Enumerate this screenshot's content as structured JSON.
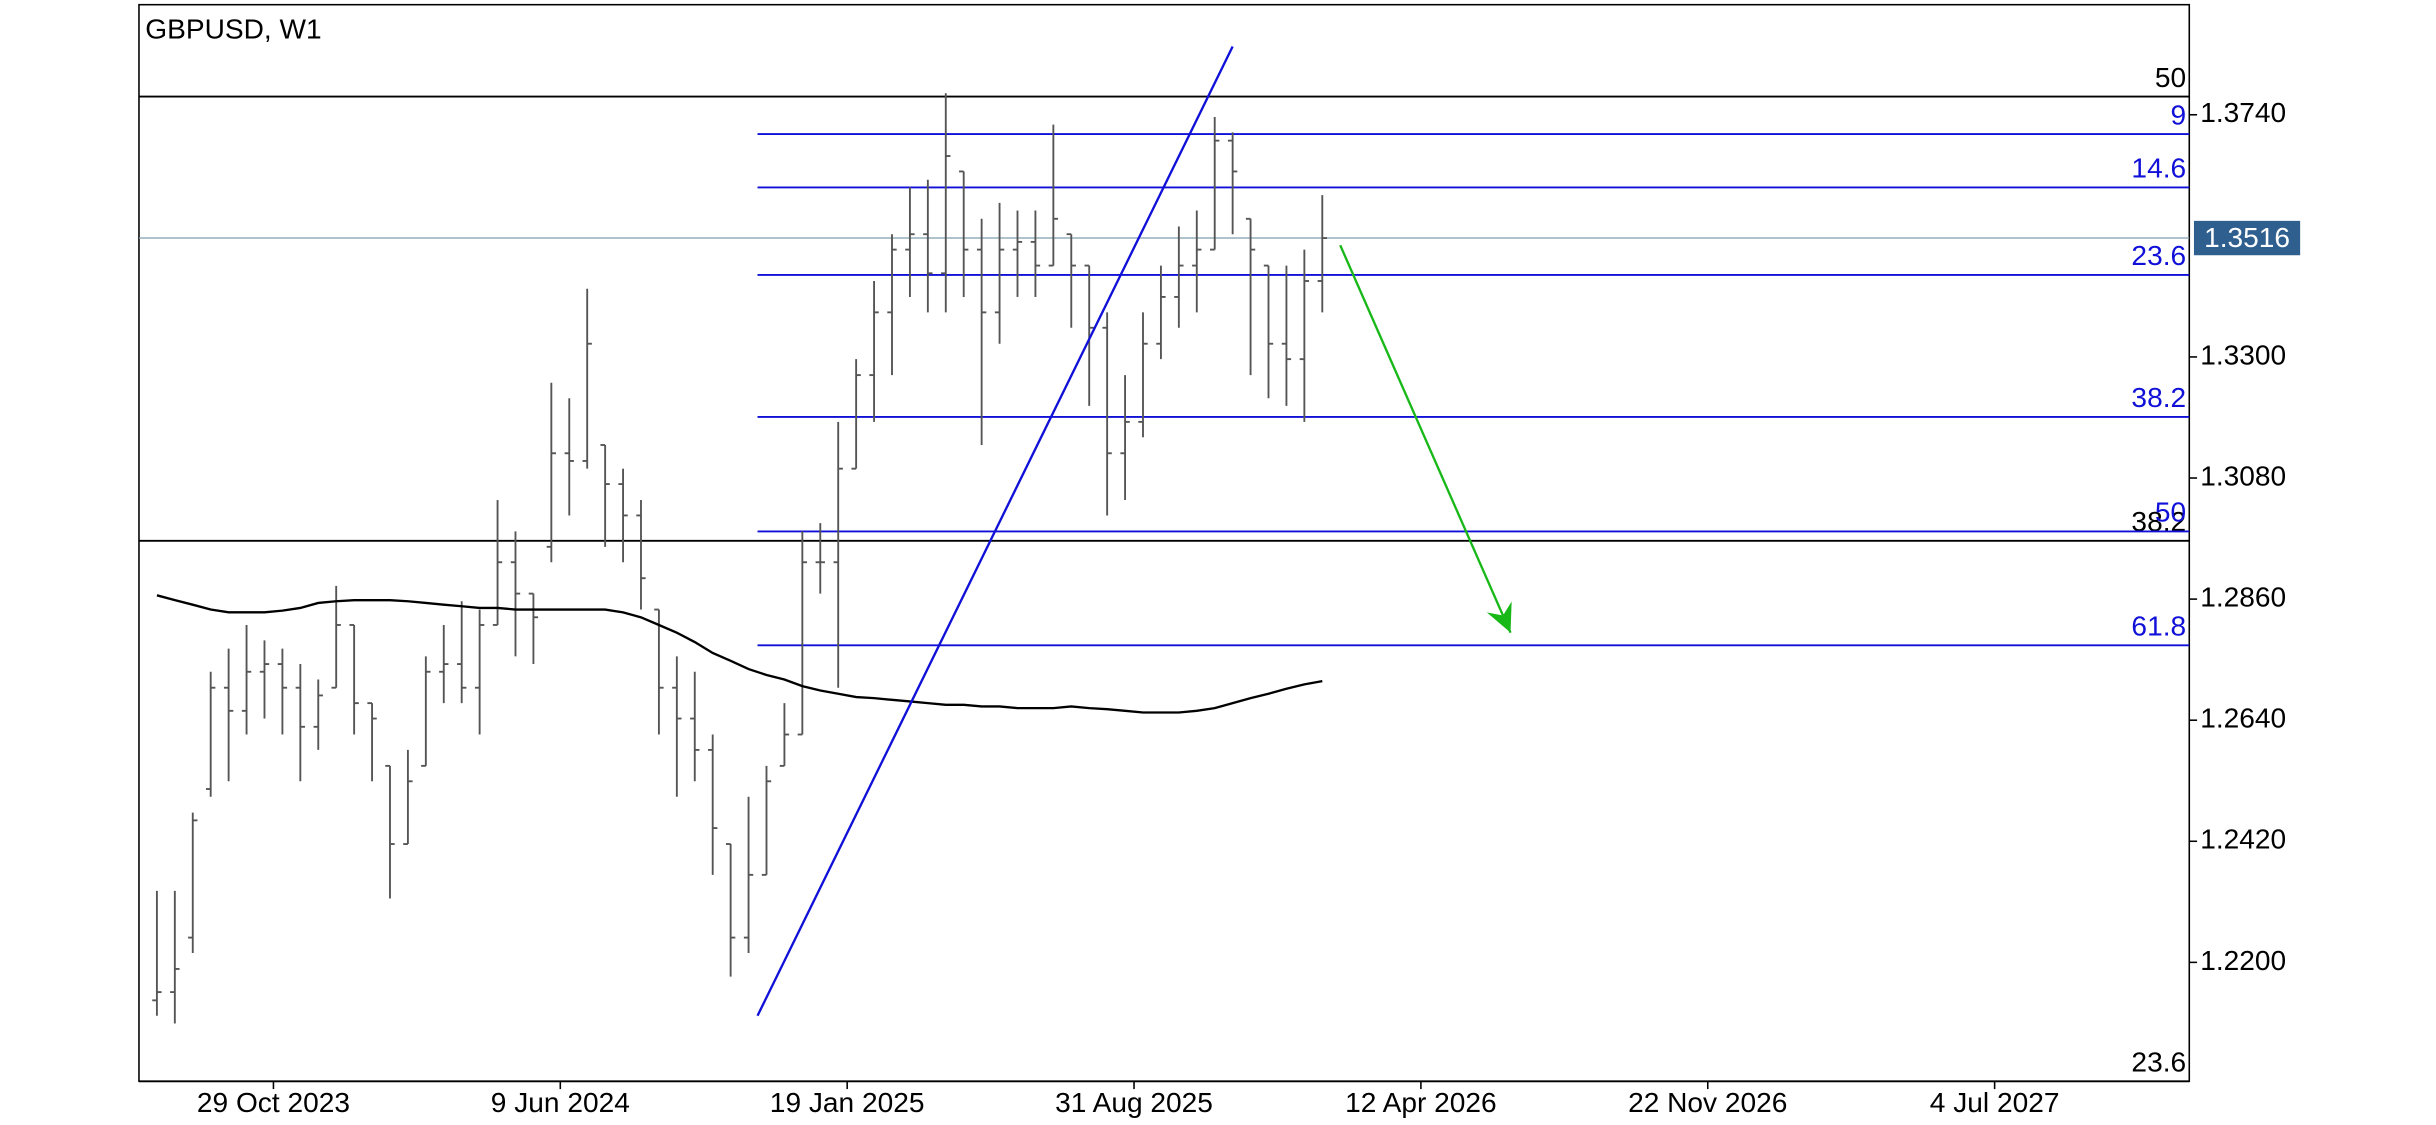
{
  "chart_data": {
    "type": "ohlc",
    "title": "GBPUSD, W1",
    "color": "#555555",
    "x": [
      "2023-07-30",
      "2023-08-13",
      "2023-08-27",
      "2023-09-10",
      "2023-09-24",
      "2023-10-08",
      "2023-10-22",
      "2023-11-05",
      "2023-11-19",
      "2023-12-03",
      "2023-12-17",
      "2023-12-31",
      "2024-01-14",
      "2024-01-28",
      "2024-02-11",
      "2024-02-25",
      "2024-03-10",
      "2024-03-24",
      "2024-04-07",
      "2024-04-21",
      "2024-05-05",
      "2024-05-19",
      "2024-06-02",
      "2024-06-16",
      "2024-06-30",
      "2024-07-14",
      "2024-07-28",
      "2024-08-11",
      "2024-08-25",
      "2024-09-08",
      "2024-09-22",
      "2024-10-06",
      "2024-10-20",
      "2024-11-03",
      "2024-11-17",
      "2024-12-01",
      "2024-12-15",
      "2024-12-29",
      "2025-01-12",
      "2025-01-26",
      "2025-02-09",
      "2025-02-23",
      "2025-03-09",
      "2025-03-23",
      "2025-04-06",
      "2025-04-20",
      "2025-05-04",
      "2025-05-18",
      "2025-06-01",
      "2025-06-15",
      "2025-06-29",
      "2025-07-13",
      "2025-07-27",
      "2025-08-10",
      "2025-08-24",
      "2025-09-07",
      "2025-09-21",
      "2025-10-05",
      "2025-10-19",
      "2025-11-02",
      "2025-11-16",
      "2025-11-30",
      "2025-12-14",
      "2025-12-28",
      "2026-01-11",
      "2026-01-25"
    ],
    "open": [
      1.2131,
      1.2146,
      1.2245,
      1.2515,
      1.2699,
      1.2657,
      1.2728,
      1.2742,
      1.2699,
      1.2628,
      1.2699,
      1.2813,
      1.2671,
      1.2557,
      1.2415,
      1.2557,
      1.2728,
      1.2742,
      1.2699,
      1.2813,
      1.2927,
      1.287,
      1.2955,
      1.3125,
      1.3111,
      1.314,
      1.3069,
      1.3012,
      1.2841,
      1.2699,
      1.2643,
      1.2586,
      1.2415,
      1.2245,
      1.2359,
      1.2557,
      1.2614,
      1.2927,
      1.2927,
      1.3097,
      1.3267,
      1.3381,
      1.3495,
      1.3523,
      1.3452,
      1.3637,
      1.3495,
      1.3381,
      1.3495,
      1.3509,
      1.3466,
      1.3523,
      1.3466,
      1.3353,
      1.3125,
      1.3182,
      1.3324,
      1.3409,
      1.3466,
      1.3495,
      1.3693,
      1.3551,
      1.3466,
      1.3324,
      1.3296,
      1.3438
    ],
    "high": [
      1.233,
      1.233,
      1.2472,
      1.2728,
      1.277,
      1.2813,
      1.2785,
      1.277,
      1.2742,
      1.2714,
      1.2884,
      1.2813,
      1.2671,
      1.2557,
      1.2586,
      1.2756,
      1.2813,
      1.2856,
      1.2841,
      1.304,
      1.2983,
      1.287,
      1.3253,
      1.3225,
      1.3424,
      1.314,
      1.3097,
      1.304,
      1.2841,
      1.2756,
      1.2728,
      1.2614,
      1.2415,
      1.2501,
      1.2557,
      1.2671,
      1.2983,
      1.2998,
      1.3182,
      1.3296,
      1.3438,
      1.3523,
      1.3608,
      1.3622,
      1.3779,
      1.3637,
      1.3551,
      1.358,
      1.3566,
      1.3566,
      1.3722,
      1.3523,
      1.3466,
      1.3381,
      1.3267,
      1.3381,
      1.3466,
      1.3537,
      1.3566,
      1.3736,
      1.3708,
      1.3551,
      1.3466,
      1.3466,
      1.3495,
      1.3594
    ],
    "low": [
      1.2103,
      1.2089,
      1.2217,
      1.2501,
      1.2529,
      1.2614,
      1.2643,
      1.2614,
      1.2529,
      1.2586,
      1.2699,
      1.2614,
      1.2529,
      1.2316,
      1.2415,
      1.2557,
      1.2671,
      1.2671,
      1.2614,
      1.2813,
      1.2756,
      1.2742,
      1.2927,
      1.3012,
      1.3097,
      1.2955,
      1.2927,
      1.2841,
      1.2614,
      1.2501,
      1.2529,
      1.2359,
      1.2174,
      1.2217,
      1.2359,
      1.2557,
      1.2614,
      1.287,
      1.2699,
      1.3097,
      1.3182,
      1.3267,
      1.3409,
      1.3381,
      1.3381,
      1.3409,
      1.314,
      1.3324,
      1.3409,
      1.3409,
      1.3466,
      1.3353,
      1.3211,
      1.3012,
      1.304,
      1.3154,
      1.3296,
      1.3353,
      1.3381,
      1.3495,
      1.3523,
      1.3267,
      1.3225,
      1.3211,
      1.3182,
      1.3381
    ],
    "close": [
      1.2146,
      1.2188,
      1.2458,
      1.2699,
      1.2657,
      1.2728,
      1.2742,
      1.2699,
      1.2628,
      1.2685,
      1.2813,
      1.2671,
      1.2643,
      1.2415,
      1.2529,
      1.2728,
      1.2742,
      1.2699,
      1.2813,
      1.2927,
      1.287,
      1.2827,
      1.3125,
      1.3111,
      1.3324,
      1.3069,
      1.3012,
      1.2898,
      1.2699,
      1.2643,
      1.2586,
      1.2444,
      1.2245,
      1.2359,
      1.2529,
      1.2614,
      1.2927,
      1.2927,
      1.3097,
      1.3267,
      1.3381,
      1.3495,
      1.3523,
      1.3452,
      1.3665,
      1.3495,
      1.3381,
      1.3495,
      1.3509,
      1.3466,
      1.3551,
      1.3466,
      1.3353,
      1.3125,
      1.3182,
      1.3324,
      1.3409,
      1.3466,
      1.3495,
      1.3693,
      1.3637,
      1.3495,
      1.3324,
      1.3296,
      1.3438,
      1.3516
    ],
    "moving_average": [
      1.2867,
      1.2858,
      1.285,
      1.2841,
      1.2836,
      1.2836,
      1.2836,
      1.2839,
      1.2844,
      1.2853,
      1.2856,
      1.2858,
      1.2858,
      1.2858,
      1.2856,
      1.2853,
      1.285,
      1.2847,
      1.2844,
      1.2844,
      1.2841,
      1.2841,
      1.2841,
      1.2841,
      1.2841,
      1.2841,
      1.2836,
      1.2827,
      1.2813,
      1.2799,
      1.2782,
      1.2762,
      1.2748,
      1.2733,
      1.2722,
      1.2714,
      1.2702,
      1.2694,
      1.2688,
      1.2682,
      1.268,
      1.2677,
      1.2674,
      1.2671,
      1.2668,
      1.2668,
      1.2665,
      1.2665,
      1.2662,
      1.2662,
      1.2662,
      1.2665,
      1.2662,
      1.266,
      1.2657,
      1.2654,
      1.2654,
      1.2654,
      1.2657,
      1.2662,
      1.2671,
      1.268,
      1.2688,
      1.2697,
      1.2705,
      1.2711
    ],
    "ma_color": "#000000",
    "trend_line": {
      "x": [
        "2024-11-10",
        "2025-11-16"
      ],
      "values": [
        1.2103,
        1.3864
      ],
      "color": "#1010d8"
    },
    "arrow": {
      "x": [
        "2026-02-08",
        "2026-06-21"
      ],
      "values": [
        1.3503,
        1.2799
      ],
      "color": "#18b818"
    },
    "fib_blue": {
      "start": "2024-11-10",
      "color": "#1010d8",
      "levels": [
        {
          "label": "9",
          "value": 1.3705
        },
        {
          "label": "14.6",
          "value": 1.3608
        },
        {
          "label": "23.6",
          "value": 1.3449
        },
        {
          "label": "38.2",
          "value": 1.3191
        },
        {
          "label": "50",
          "value": 1.2983
        },
        {
          "label": "61.8",
          "value": 1.2776
        }
      ]
    },
    "fib_black": {
      "color": "#000000",
      "levels": [
        {
          "label": "50",
          "value": 1.3773
        },
        {
          "label": "38.2",
          "value": 1.2966
        },
        {
          "label": "23.6",
          "value": 1.1984
        }
      ]
    },
    "price_line_color": "#7f9faf",
    "price_label_color": "#2f5f8f",
    "xlim": [
      "2023-07-16",
      "2027-12-03"
    ],
    "xticks": [
      {
        "value": "2023-10-29",
        "label": "29 Oct 2023"
      },
      {
        "value": "2024-06-09",
        "label": "9 Jun 2024"
      },
      {
        "value": "2025-01-19",
        "label": "19 Jan 2025"
      },
      {
        "value": "2025-08-31",
        "label": "31 Aug 2025"
      },
      {
        "value": "2026-04-12",
        "label": "12 Apr 2026"
      },
      {
        "value": "2026-11-22",
        "label": "22 Nov 2026"
      },
      {
        "value": "2027-07-04",
        "label": "4 Jul 2027"
      }
    ],
    "ylim": [
      1.1984,
      1.394
    ],
    "yticks": [
      {
        "value": 1.22,
        "label": "1.2200"
      },
      {
        "value": 1.242,
        "label": "1.2420"
      },
      {
        "value": 1.264,
        "label": "1.2640"
      },
      {
        "value": 1.286,
        "label": "1.2860"
      },
      {
        "value": 1.308,
        "label": "1.3080"
      },
      {
        "value": 1.33,
        "label": "1.3300"
      },
      {
        "value": 1.374,
        "label": "1.3740"
      }
    ]
  }
}
